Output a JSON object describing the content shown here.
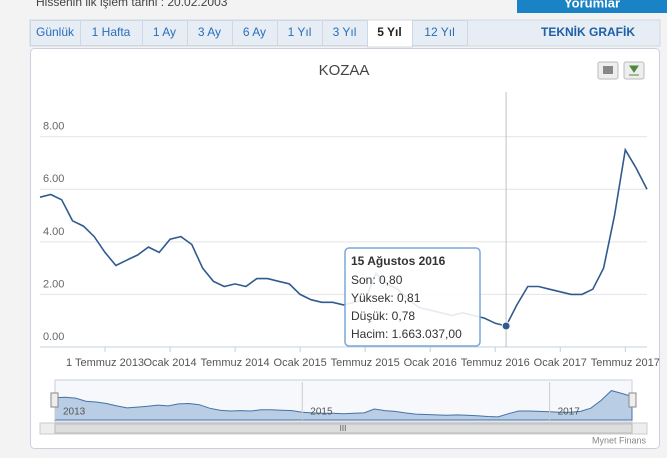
{
  "header": {
    "first_trade": "Hissenin ilk işlem tarihi : 20.02.2003",
    "comments_button": "Yorumlar"
  },
  "tabs": [
    "Günlük",
    "1 Hafta",
    "1 Ay",
    "3 Ay",
    "6 Ay",
    "1 Yıl",
    "3 Yıl",
    "5 Yıl",
    "12 Yıl"
  ],
  "active_tab": 7,
  "technical_tab": "TEKNİK GRAFİK",
  "chart_data": {
    "type": "line",
    "title": "KOZAA",
    "x": [
      "2013-01",
      "2013-02",
      "2013-03",
      "2013-04",
      "2013-05",
      "2013-06",
      "2013-07",
      "2013-08",
      "2013-09",
      "2013-10",
      "2013-11",
      "2013-12",
      "2014-01",
      "2014-02",
      "2014-03",
      "2014-04",
      "2014-05",
      "2014-06",
      "2014-07",
      "2014-08",
      "2014-09",
      "2014-10",
      "2014-11",
      "2014-12",
      "2015-01",
      "2015-02",
      "2015-03",
      "2015-04",
      "2015-05",
      "2015-06",
      "2015-07",
      "2015-08",
      "2015-09",
      "2015-10",
      "2015-11",
      "2015-12",
      "2016-01",
      "2016-02",
      "2016-03",
      "2016-04",
      "2016-05",
      "2016-06",
      "2016-07",
      "2016-08",
      "2016-09",
      "2016-10",
      "2016-11",
      "2016-12",
      "2017-01",
      "2017-02",
      "2017-03",
      "2017-04",
      "2017-05",
      "2017-06",
      "2017-07",
      "2017-08",
      "2017-09"
    ],
    "series": [
      {
        "name": "KOZAA",
        "color": "#2f5b8e",
        "values": [
          5.7,
          5.8,
          5.6,
          4.8,
          4.6,
          4.2,
          3.6,
          3.1,
          3.3,
          3.5,
          3.8,
          3.6,
          4.1,
          4.2,
          3.9,
          3.0,
          2.5,
          2.3,
          2.4,
          2.3,
          2.6,
          2.6,
          2.5,
          2.4,
          2.0,
          1.8,
          1.7,
          1.7,
          1.6,
          1.7,
          1.8,
          2.8,
          2.4,
          2.2,
          1.8,
          1.5,
          1.4,
          1.3,
          1.2,
          1.3,
          1.2,
          1.1,
          0.9,
          0.8,
          1.6,
          2.3,
          2.3,
          2.2,
          2.1,
          2.0,
          2.0,
          2.2,
          3.0,
          5.0,
          7.5,
          6.8,
          6.0
        ]
      }
    ],
    "xlim": [
      "2013-01",
      "2017-09"
    ],
    "xticks": [
      {
        "value": "2013-07",
        "label": "1 Temmuz 2013"
      },
      {
        "value": "2014-01",
        "label": "Ocak 2014"
      },
      {
        "value": "2014-07",
        "label": "Temmuz 2014"
      },
      {
        "value": "2015-01",
        "label": "Ocak 2015"
      },
      {
        "value": "2015-07",
        "label": "Temmuz 2015"
      },
      {
        "value": "2016-01",
        "label": "Ocak 2016"
      },
      {
        "value": "2016-07",
        "label": "Temmuz 2016"
      },
      {
        "value": "2017-01",
        "label": "Ocak 2017"
      },
      {
        "value": "2017-07",
        "label": "Temmuz 2017"
      }
    ],
    "ylim": [
      0,
      9.7
    ],
    "yticks": [
      {
        "value": 0,
        "label": "0.00"
      },
      {
        "value": 2,
        "label": "2.00"
      },
      {
        "value": 4,
        "label": "4.00"
      },
      {
        "value": 6,
        "label": "6.00"
      },
      {
        "value": 8,
        "label": "8.00"
      }
    ],
    "grid": true,
    "tooltip": {
      "index": 43,
      "date": "15 Ağustos 2016",
      "rows": [
        "Son: 0,80",
        "Yüksek: 0,81",
        "Düşük: 0,78",
        "Hacim: 1.663.037,00"
      ]
    },
    "navigator": {
      "xticks": [
        {
          "value": "2013-01",
          "label": "2013"
        },
        {
          "value": "2015-01",
          "label": "2015"
        },
        {
          "value": "2017-01",
          "label": "2017"
        }
      ]
    },
    "scrollbar_grip": "III",
    "credits": "Mynet Finans"
  }
}
